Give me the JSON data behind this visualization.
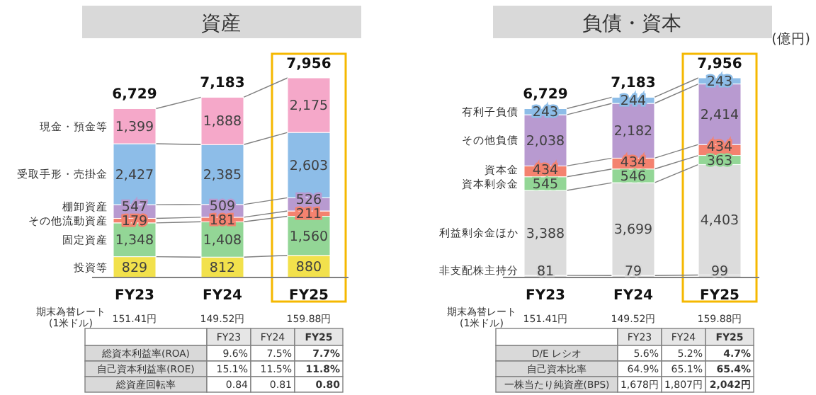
{
  "chart_data": [
    {
      "type": "bar",
      "title": "資産",
      "stacked": true,
      "categories": [
        "FY23",
        "FY24",
        "FY25"
      ],
      "series": [
        {
          "name": "投資等",
          "color": "#f2e14c",
          "values": [
            829,
            812,
            880
          ],
          "value_labels": [
            "829",
            "812",
            "880"
          ]
        },
        {
          "name": "固定資産",
          "color": "#93d696",
          "values": [
            1348,
            1408,
            1560
          ],
          "value_labels": [
            "1,348",
            "1,408",
            "1,560"
          ]
        },
        {
          "name": "その他流動資産",
          "color": "#f4826f",
          "values": [
            179,
            181,
            211
          ],
          "value_labels": [
            "179",
            "181",
            "211"
          ]
        },
        {
          "name": "棚卸資産",
          "color": "#b89ad0",
          "values": [
            547,
            509,
            526
          ],
          "value_labels": [
            "547",
            "509",
            "526"
          ]
        },
        {
          "name": "受取手形・売掛金",
          "color": "#8dbde8",
          "values": [
            2427,
            2385,
            2603
          ],
          "value_labels": [
            "2,427",
            "2,385",
            "2,603"
          ]
        },
        {
          "name": "現金・預金等",
          "color": "#f5a8c9",
          "values": [
            1399,
            1888,
            2175
          ],
          "value_labels": [
            "1,399",
            "1,888",
            "2,175"
          ]
        }
      ],
      "totals": [
        "6,729",
        "7,183",
        "7,956"
      ],
      "annotations": [
        "期末為替レート",
        "(1米ドル)",
        "151.41円",
        "149.52円",
        "159.88円",
        "FY23",
        "FY24",
        "FY25",
        "総資本利益率(ROA)",
        "9.6%",
        "7.5%",
        "7.7%",
        "自己資本利益率(ROE)",
        "15.1%",
        "11.5%",
        "11.8%",
        "総資産回転率",
        "0.84",
        "0.81",
        "0.80"
      ]
    },
    {
      "type": "bar",
      "title": "負債・資本",
      "stacked": true,
      "categories": [
        "FY23",
        "FY24",
        "FY25"
      ],
      "series": [
        {
          "name": "非支配株主持分",
          "color": "#d9d9d9",
          "values": [
            81,
            79,
            99
          ],
          "value_labels": [
            "81",
            "79",
            "99"
          ]
        },
        {
          "name": "利益剰余金ほか",
          "color": "#dcdcdc",
          "values": [
            3388,
            3699,
            4403
          ],
          "value_labels": [
            "3,388",
            "3,699",
            "4,403"
          ]
        },
        {
          "name": "資本剰余金",
          "color": "#93d696",
          "values": [
            545,
            546,
            363
          ],
          "value_labels": [
            "545",
            "546",
            "363"
          ]
        },
        {
          "name": "資本金",
          "color": "#f4826f",
          "values": [
            434,
            434,
            434
          ],
          "value_labels": [
            "434",
            "434",
            "434"
          ]
        },
        {
          "name": "その他負債",
          "color": "#b89ad0",
          "values": [
            2038,
            2182,
            2414
          ],
          "value_labels": [
            "2,038",
            "2,182",
            "2,414"
          ]
        },
        {
          "name": "有利子負債",
          "color": "#8dbde8",
          "values": [
            243,
            244,
            243
          ],
          "value_labels": [
            "243",
            "244",
            "243"
          ]
        }
      ],
      "totals": [
        "6,729",
        "7,183",
        "7,956"
      ],
      "annotations": [
        "期末為替レート",
        "(1米ドル)",
        "151.41円",
        "149.52円",
        "159.88円",
        "FY23",
        "FY24",
        "FY25",
        "D/E レシオ",
        "5.6%",
        "5.2%",
        "4.7%",
        "自己資本比率",
        "64.9%",
        "65.1%",
        "65.4%",
        "一株当たり純資産(BPS)",
        "1,678円",
        "1,807円",
        "2,042円",
        "(億円)"
      ]
    }
  ]
}
